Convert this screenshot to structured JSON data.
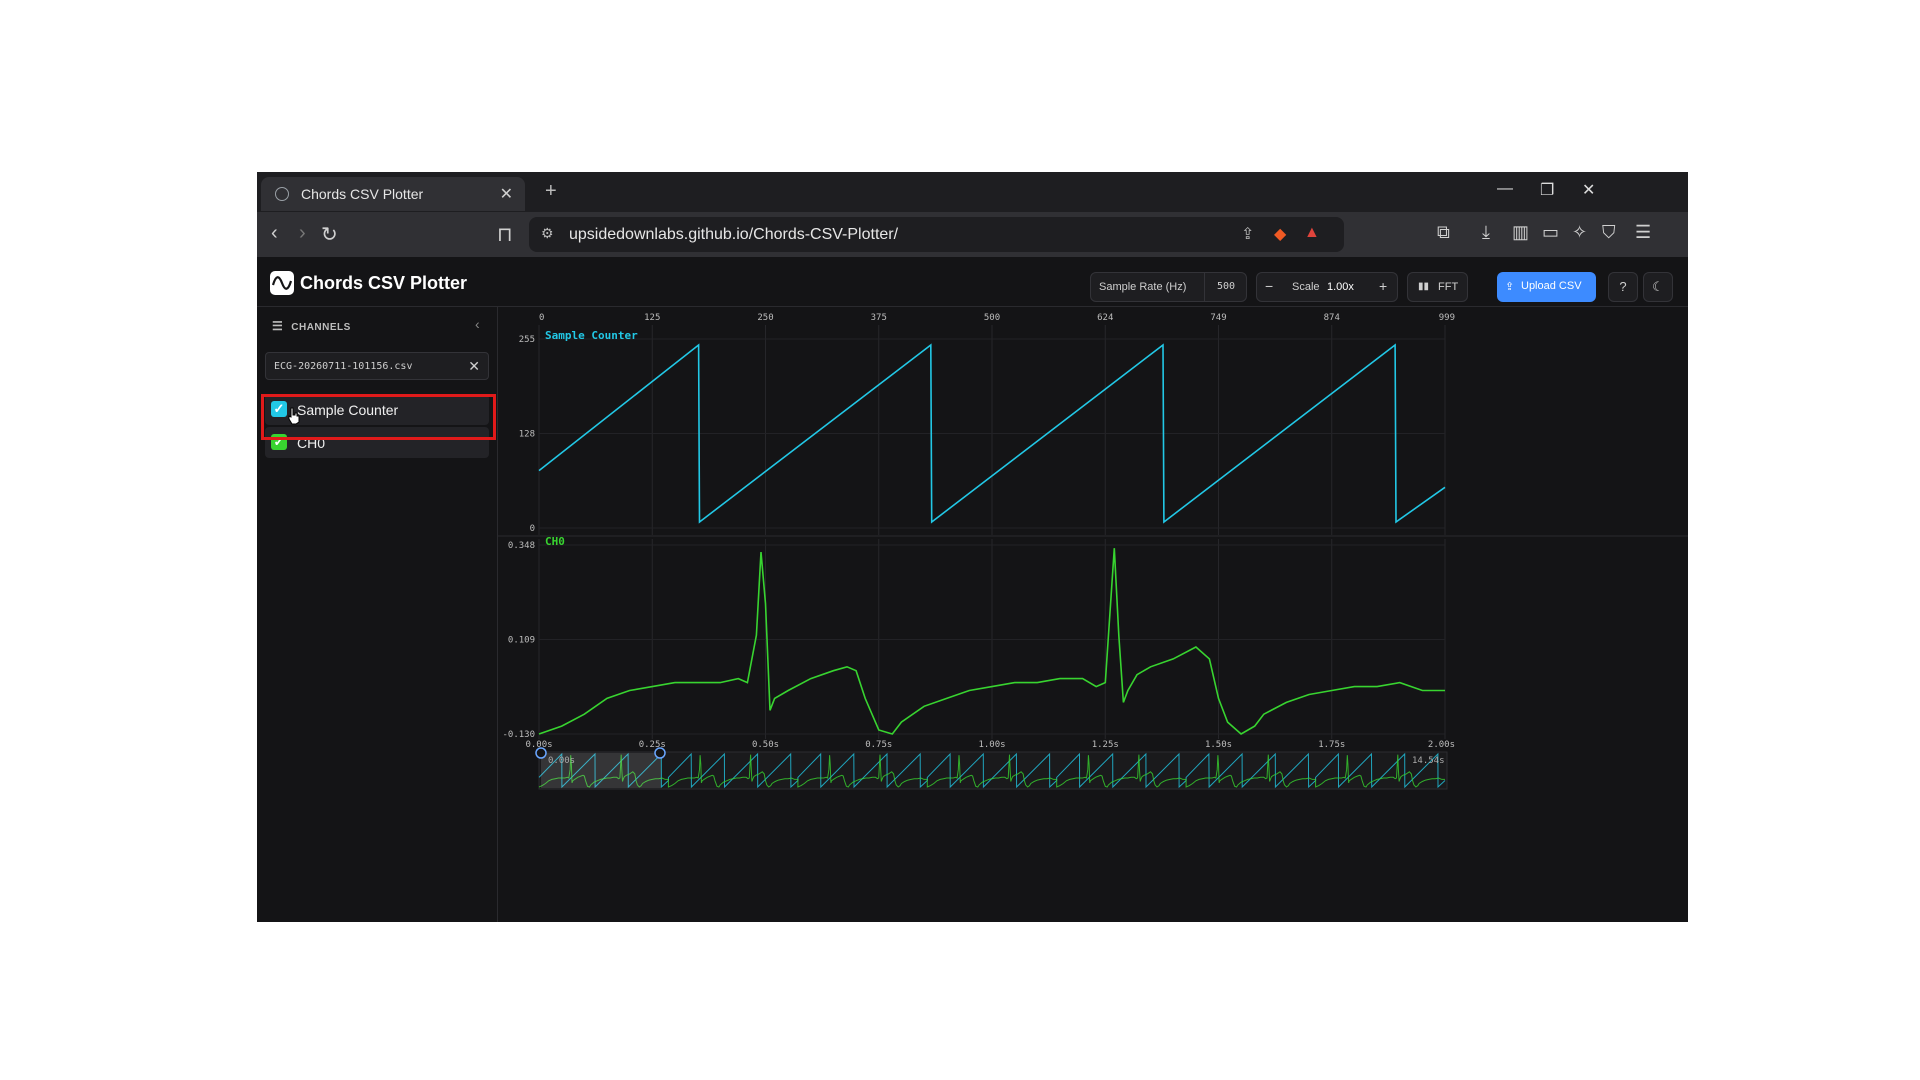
{
  "tab": {
    "title": "Chords CSV Plotter"
  },
  "url": "upsidedownlabs.github.io/Chords-CSV-Plotter/",
  "app": {
    "title": "Chords CSV Plotter",
    "sample_rate_label": "Sample Rate (Hz)",
    "sample_rate_value": "500",
    "scale_label": "Scale",
    "scale_value": "1.00x",
    "fft_label": "FFT",
    "upload_label": "Upload CSV",
    "help_label": "?"
  },
  "sidebar": {
    "heading": "CHANNELS",
    "file_name": "ECG-20260711-101156.csv",
    "channels": [
      {
        "label": "Sample Counter",
        "checked": true,
        "color": "#22c8e6"
      },
      {
        "label": "CH0",
        "checked": true,
        "color": "#38d430"
      }
    ]
  },
  "plot": {
    "sample_ticks": [
      "0",
      "125",
      "250",
      "375",
      "500",
      "624",
      "749",
      "874",
      "999"
    ],
    "time_ticks": [
      "0.00s",
      "0.25s",
      "0.50s",
      "0.75s",
      "1.00s",
      "1.25s",
      "1.50s",
      "1.75s",
      "2.00s"
    ],
    "navigator_start": "0.00s",
    "navigator_end": "14.54s"
  },
  "chart_data": [
    {
      "type": "line",
      "title": "Sample Counter",
      "series": [
        {
          "name": "Sample Counter",
          "color": "#22c8e6"
        }
      ],
      "x": [
        0,
        176,
        177,
        432,
        433,
        688,
        689,
        944,
        945,
        999
      ],
      "y": [
        74,
        255,
        0,
        255,
        0,
        255,
        0,
        255,
        0,
        50
      ],
      "yticks": [
        "255",
        "128",
        "0"
      ],
      "ylim": [
        0,
        255
      ],
      "xlim": [
        0,
        999
      ]
    },
    {
      "type": "line",
      "title": "CH0",
      "series": [
        {
          "name": "CH0",
          "color": "#38d430"
        }
      ],
      "x": [
        0.0,
        0.05,
        0.1,
        0.15,
        0.2,
        0.25,
        0.3,
        0.35,
        0.4,
        0.44,
        0.46,
        0.48,
        0.49,
        0.5,
        0.51,
        0.52,
        0.55,
        0.6,
        0.65,
        0.68,
        0.7,
        0.72,
        0.75,
        0.78,
        0.8,
        0.85,
        0.9,
        0.95,
        1.0,
        1.05,
        1.1,
        1.15,
        1.2,
        1.23,
        1.25,
        1.27,
        1.28,
        1.29,
        1.3,
        1.32,
        1.35,
        1.4,
        1.45,
        1.48,
        1.5,
        1.52,
        1.55,
        1.58,
        1.6,
        1.65,
        1.7,
        1.75,
        1.8,
        1.85,
        1.9,
        1.95,
        2.0
      ],
      "y": [
        -0.13,
        -0.11,
        -0.08,
        -0.04,
        -0.02,
        -0.01,
        0.0,
        0.0,
        0.0,
        0.01,
        0.0,
        0.12,
        0.33,
        0.2,
        -0.07,
        -0.04,
        -0.02,
        0.01,
        0.03,
        0.04,
        0.03,
        -0.04,
        -0.12,
        -0.13,
        -0.1,
        -0.06,
        -0.04,
        -0.02,
        -0.01,
        0.0,
        0.0,
        0.01,
        0.01,
        -0.01,
        0.0,
        0.34,
        0.12,
        -0.05,
        -0.02,
        0.02,
        0.04,
        0.06,
        0.09,
        0.06,
        -0.04,
        -0.1,
        -0.13,
        -0.11,
        -0.08,
        -0.05,
        -0.03,
        -0.02,
        -0.01,
        -0.01,
        0.0,
        -0.02,
        -0.02
      ],
      "xticks": [
        "0.00s",
        "0.25s",
        "0.50s",
        "0.75s",
        "1.00s",
        "1.25s",
        "1.50s",
        "1.75s",
        "2.00s"
      ],
      "yticks": [
        "0.348",
        "0.109",
        "-0.130"
      ],
      "ylim": [
        -0.13,
        0.348
      ],
      "xlim": [
        0,
        2.0
      ]
    }
  ]
}
